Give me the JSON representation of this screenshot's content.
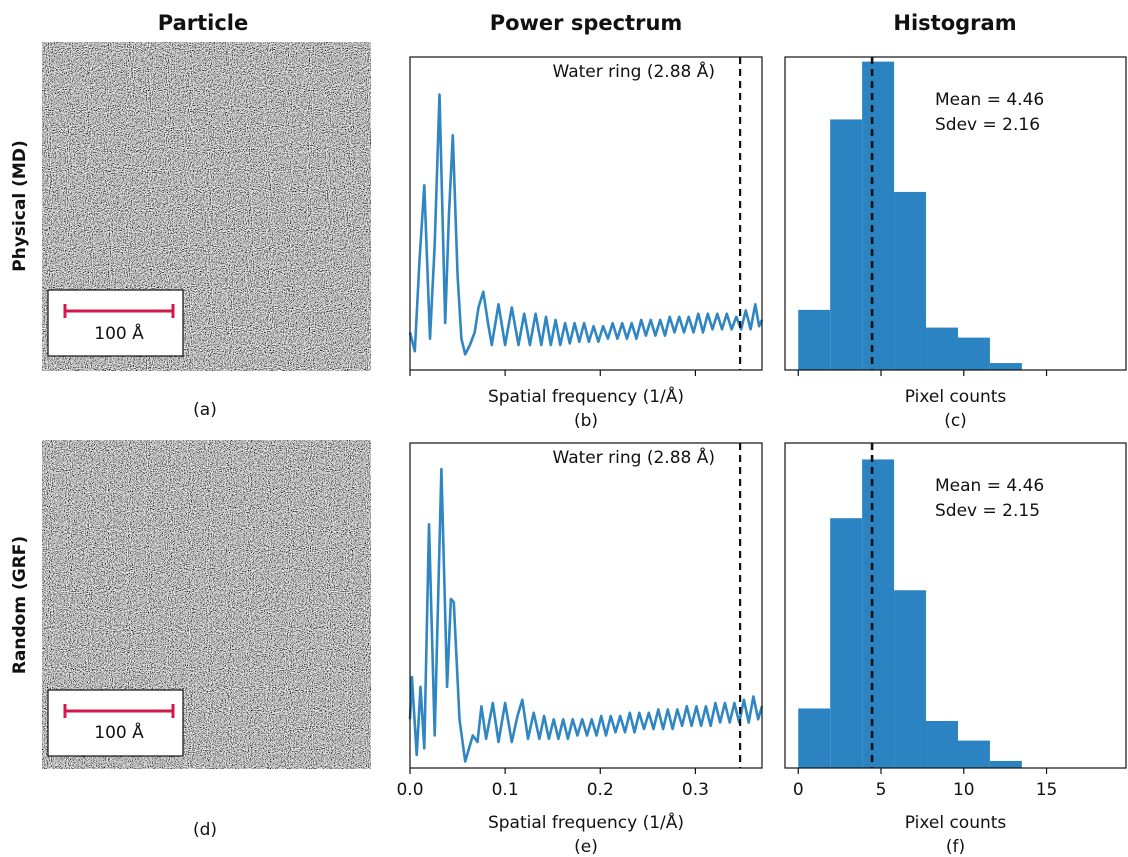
{
  "column_titles": [
    "Particle",
    "Power spectrum",
    "Histogram"
  ],
  "row_labels": [
    "Physical (MD)",
    "Random (GRF)"
  ],
  "panel_labels": [
    "(a)",
    "(b)",
    "(c)",
    "(d)",
    "(e)",
    "(f)"
  ],
  "scale_bar_label": "100 Å",
  "chart_data": [
    {
      "type": "line",
      "xlabel": "Spatial frequency (1/Å)",
      "annotation": "Water ring (2.88 Å)",
      "vline": 0.347,
      "color": "#2f86c3",
      "xlim": [
        0,
        0.37
      ],
      "ylim": [
        0,
        10
      ],
      "xticks": [
        0,
        0.1,
        0.2,
        0.3
      ],
      "x": [
        0,
        0.005,
        0.01,
        0.015,
        0.021,
        0.026,
        0.031,
        0.037,
        0.041,
        0.045,
        0.05,
        0.054,
        0.058,
        0.063,
        0.068,
        0.072,
        0.077,
        0.082,
        0.086,
        0.093,
        0.1,
        0.107,
        0.114,
        0.12,
        0.126,
        0.132,
        0.138,
        0.143,
        0.148,
        0.153,
        0.158,
        0.163,
        0.168,
        0.173,
        0.178,
        0.183,
        0.188,
        0.193,
        0.198,
        0.203,
        0.208,
        0.213,
        0.218,
        0.223,
        0.228,
        0.233,
        0.238,
        0.243,
        0.248,
        0.253,
        0.258,
        0.263,
        0.268,
        0.273,
        0.278,
        0.283,
        0.288,
        0.293,
        0.298,
        0.303,
        0.308,
        0.313,
        0.318,
        0.323,
        0.328,
        0.333,
        0.338,
        0.343,
        0.348,
        0.353,
        0.358,
        0.363,
        0.367,
        0.37
      ],
      "values": [
        1.2,
        0.6,
        3.5,
        5.9,
        1.0,
        4.0,
        8.8,
        1.5,
        5.0,
        7.5,
        3.0,
        1.0,
        0.5,
        0.8,
        1.2,
        2.0,
        2.5,
        1.5,
        0.8,
        2.1,
        0.8,
        2.0,
        0.8,
        1.8,
        0.8,
        1.8,
        0.8,
        1.7,
        0.8,
        1.6,
        0.8,
        1.5,
        0.85,
        1.5,
        0.9,
        1.5,
        0.9,
        1.4,
        0.9,
        1.4,
        1.0,
        1.5,
        1.0,
        1.5,
        1.0,
        1.5,
        1.0,
        1.6,
        1.1,
        1.6,
        1.1,
        1.6,
        1.1,
        1.7,
        1.2,
        1.7,
        1.2,
        1.7,
        1.2,
        1.8,
        1.2,
        1.8,
        1.3,
        1.8,
        1.3,
        1.8,
        1.3,
        1.7,
        1.3,
        1.9,
        1.3,
        2.1,
        1.4,
        1.6
      ]
    },
    {
      "type": "histogram",
      "xlabel": "Pixel counts",
      "annotations": [
        "Mean = 4.46",
        "Sdev = 2.16"
      ],
      "vline": 4.46,
      "color": "#2b83c1",
      "xlim": [
        -0.8,
        19.8
      ],
      "ylim": [
        0,
        4.06
      ],
      "xticks": [
        0,
        5,
        10,
        15
      ],
      "bins": [
        0,
        1.93,
        3.86,
        5.79,
        7.72,
        9.65,
        11.58,
        13.51
      ],
      "values": [
        0.78,
        3.25,
        4.0,
        2.31,
        0.55,
        0.42,
        0.09
      ]
    },
    {
      "type": "line",
      "xlabel": "Spatial frequency (1/Å)",
      "annotation": "Water ring (2.88 Å)",
      "vline": 0.347,
      "color": "#2f86c3",
      "xlim": [
        0,
        0.37
      ],
      "ylim": [
        0,
        10
      ],
      "xticks": [
        {
          "value": 0,
          "label": "0.0"
        },
        0.1,
        0.2,
        0.3
      ],
      "x": [
        0,
        0.002,
        0.007,
        0.011,
        0.015,
        0.02,
        0.026,
        0.033,
        0.039,
        0.043,
        0.046,
        0.052,
        0.058,
        0.066,
        0.071,
        0.075,
        0.08,
        0.087,
        0.093,
        0.1,
        0.107,
        0.113,
        0.118,
        0.124,
        0.13,
        0.136,
        0.141,
        0.146,
        0.151,
        0.156,
        0.161,
        0.166,
        0.171,
        0.176,
        0.181,
        0.186,
        0.191,
        0.196,
        0.201,
        0.206,
        0.211,
        0.216,
        0.221,
        0.226,
        0.231,
        0.236,
        0.241,
        0.246,
        0.251,
        0.256,
        0.261,
        0.266,
        0.271,
        0.276,
        0.281,
        0.286,
        0.291,
        0.296,
        0.301,
        0.306,
        0.311,
        0.316,
        0.321,
        0.326,
        0.331,
        0.336,
        0.341,
        0.346,
        0.351,
        0.356,
        0.361,
        0.366,
        0.37
      ],
      "values": [
        1.5,
        2.8,
        0.4,
        2.5,
        0.6,
        7.5,
        1.0,
        9.2,
        2.5,
        5.2,
        5.1,
        1.5,
        0.2,
        1.0,
        0.8,
        1.9,
        0.9,
        2.0,
        0.8,
        2.0,
        0.8,
        1.6,
        2.1,
        0.9,
        1.7,
        0.9,
        1.6,
        0.9,
        1.5,
        0.9,
        1.5,
        0.9,
        1.5,
        1.0,
        1.5,
        1.0,
        1.5,
        1.0,
        1.6,
        1.0,
        1.6,
        1.1,
        1.6,
        1.1,
        1.7,
        1.1,
        1.7,
        1.2,
        1.7,
        1.2,
        1.8,
        1.2,
        1.8,
        1.2,
        1.8,
        1.3,
        1.9,
        1.3,
        1.9,
        1.3,
        1.9,
        1.3,
        2.0,
        1.4,
        2.0,
        1.4,
        2.0,
        1.4,
        2.1,
        1.4,
        2.2,
        1.5,
        1.9
      ]
    },
    {
      "type": "histogram",
      "xlabel": "Pixel counts",
      "annotations": [
        "Mean = 4.46",
        "Sdev = 2.15"
      ],
      "vline": 4.46,
      "color": "#2b83c1",
      "xlim": [
        -0.8,
        19.8
      ],
      "ylim": [
        0,
        4.15
      ],
      "xticks": [
        0,
        5,
        10,
        15
      ],
      "bins": [
        0,
        1.93,
        3.86,
        5.79,
        7.72,
        9.65,
        11.58,
        13.51
      ],
      "values": [
        0.76,
        3.19,
        3.94,
        2.27,
        0.6,
        0.35,
        0.09
      ]
    }
  ]
}
